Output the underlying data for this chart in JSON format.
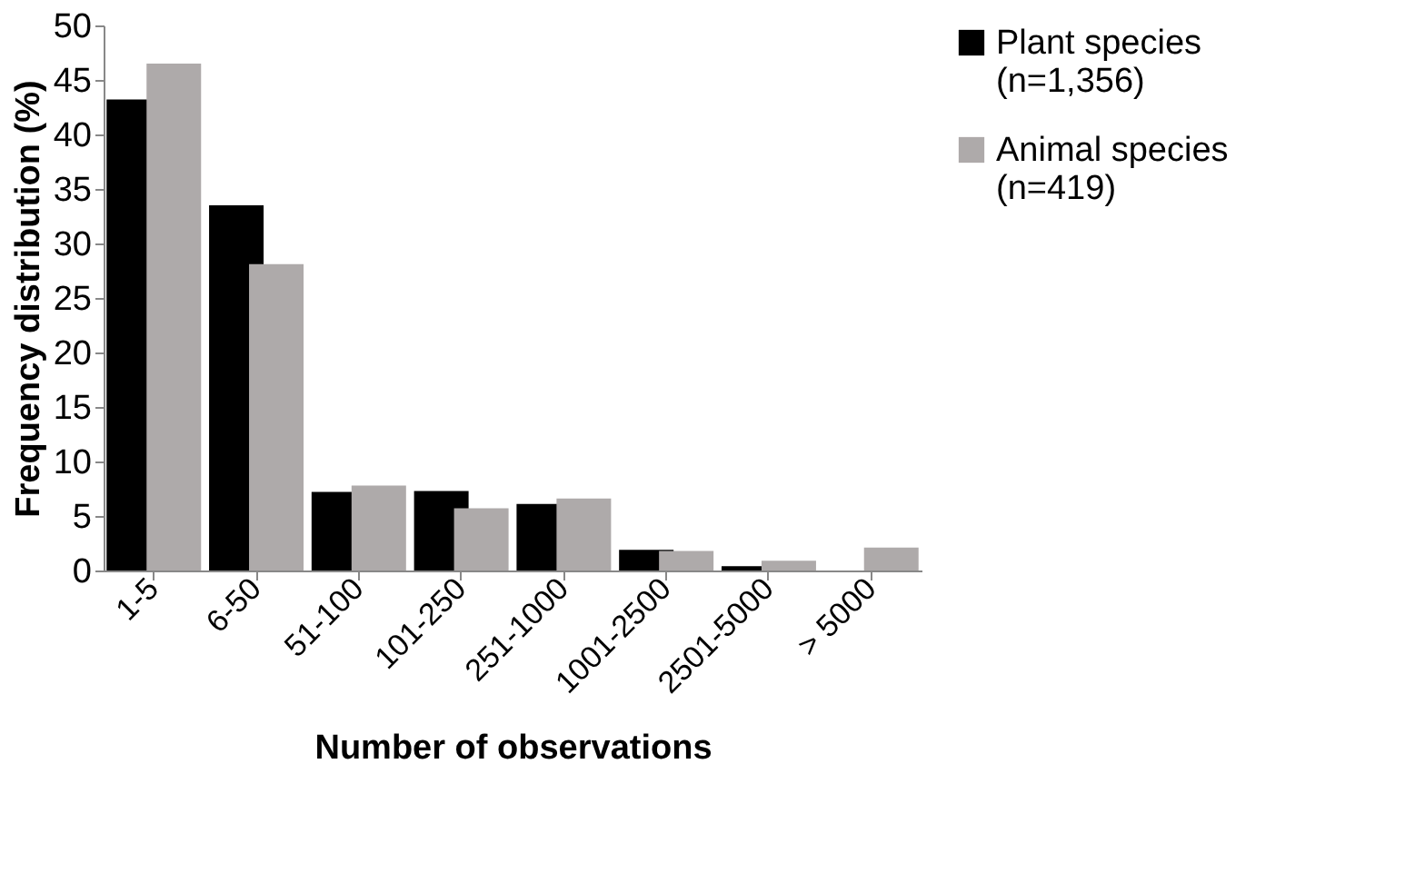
{
  "chart_data": {
    "type": "bar",
    "xlabel": "Number of observations",
    "ylabel": "Frequency distribution (%)",
    "categories": [
      "1-5",
      "6-50",
      "51-100",
      "101-250",
      "251-1000",
      "1001-2500",
      "2501-5000",
      "> 5000"
    ],
    "series": [
      {
        "name": "Plant species\n(n=1,356)",
        "color": "#000000",
        "values": [
          43.2,
          33.5,
          7.2,
          7.3,
          6.1,
          1.9,
          0.4,
          0
        ]
      },
      {
        "name": "Animal species\n(n=419)",
        "color": "#aeaaaa",
        "values": [
          46.5,
          28.1,
          7.8,
          5.7,
          6.6,
          1.8,
          0.9,
          2.1
        ]
      }
    ],
    "ylim": [
      0,
      50
    ],
    "yticks": [
      0,
      5,
      10,
      15,
      20,
      25,
      30,
      35,
      40,
      45,
      50
    ],
    "grid": false,
    "legend": "right"
  }
}
